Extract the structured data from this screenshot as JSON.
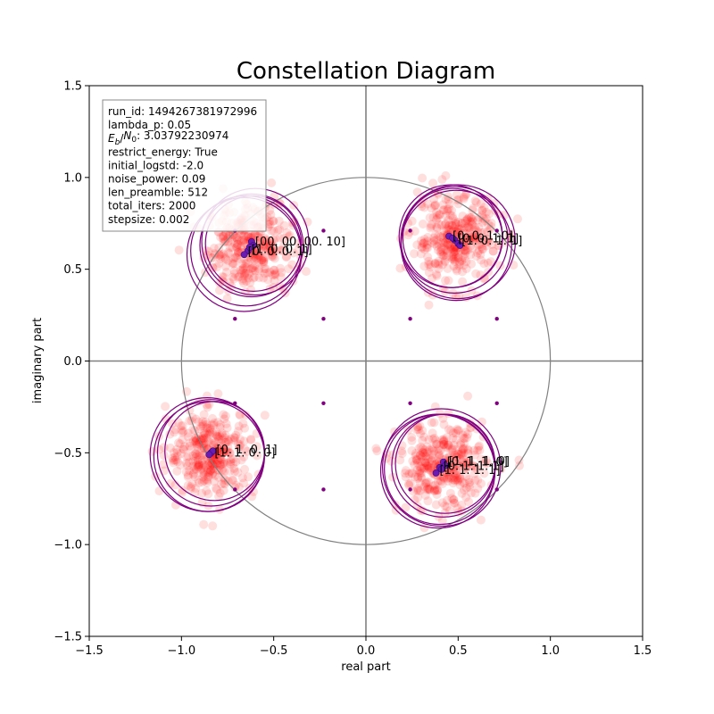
{
  "chart_data": {
    "type": "scatter",
    "title": "Constellation Diagram",
    "xlabel": "real part",
    "ylabel": "imaginary part",
    "xlim": [
      -1.5,
      1.5
    ],
    "ylim": [
      -1.5,
      1.5
    ],
    "x_ticks": [
      "−1.5",
      "−1.0",
      "−0.5",
      "0.0",
      "0.5",
      "1.0",
      "1.5"
    ],
    "y_ticks": [
      "−1.5",
      "−1.0",
      "−0.5",
      "0.0",
      "0.5",
      "1.0",
      "1.5"
    ],
    "grid": false,
    "unit_circle": {
      "radius": 1.0,
      "color": "#808080"
    },
    "origin_axes_color": "#808080",
    "info_box": [
      "run_id: 1494267381972996",
      "lambda_p: 0.05",
      "E_b/N_0: 3.03792230974",
      "restrict_energy: True",
      "initial_logstd: -2.0",
      "noise_power: 0.09",
      "len_preamble: 512",
      "total_iters: 2000",
      "stepsize: 0.002"
    ],
    "clusters": [
      {
        "center": [
          -0.63,
          0.62
        ],
        "spread": 0.19,
        "color": "#ff0000",
        "ring_color": "#800080",
        "rings": [
          [
            -0.62,
            0.63,
            0.28
          ],
          [
            -0.65,
            0.6,
            0.3
          ],
          [
            -0.61,
            0.64,
            0.26
          ],
          [
            -0.66,
            0.58,
            0.31
          ],
          [
            -0.6,
            0.65,
            0.29
          ]
        ],
        "points": [
          [
            -0.62,
            0.65
          ],
          [
            -0.64,
            0.6
          ],
          [
            -0.66,
            0.58
          ],
          [
            -0.61,
            0.63
          ],
          [
            -0.63,
            0.62
          ]
        ],
        "labels": [
          "[00. 00. 00. 10]",
          "[1. 0. 0. 1]",
          "[0. 0. 0. 1]"
        ]
      },
      {
        "center": [
          0.48,
          0.66
        ],
        "spread": 0.19,
        "color": "#ff0000",
        "ring_color": "#800080",
        "rings": [
          [
            0.48,
            0.66,
            0.29
          ],
          [
            0.5,
            0.65,
            0.31
          ],
          [
            0.47,
            0.67,
            0.27
          ],
          [
            0.49,
            0.63,
            0.3
          ],
          [
            0.46,
            0.68,
            0.28
          ]
        ],
        "points": [
          [
            0.45,
            0.68
          ],
          [
            0.48,
            0.66
          ],
          [
            0.5,
            0.64
          ],
          [
            0.47,
            0.67
          ],
          [
            0.51,
            0.63
          ]
        ],
        "labels": [
          "[0. 0. 1. 0]",
          "[0. 0. 1. 1]",
          "[1. 0. 1. 1]"
        ]
      },
      {
        "center": [
          -0.84,
          -0.5
        ],
        "spread": 0.19,
        "color": "#ff0000",
        "ring_color": "#800080",
        "rings": [
          [
            -0.84,
            -0.5,
            0.29
          ],
          [
            -0.86,
            -0.51,
            0.31
          ],
          [
            -0.82,
            -0.49,
            0.27
          ],
          [
            -0.85,
            -0.52,
            0.3
          ]
        ],
        "points": [
          [
            -0.84,
            -0.5
          ],
          [
            -0.83,
            -0.49
          ],
          [
            -0.85,
            -0.51
          ]
        ],
        "labels": [
          "[1. 1. 0. 0]",
          "[0. 1. 0. 1]"
        ]
      },
      {
        "center": [
          0.41,
          -0.58
        ],
        "spread": 0.19,
        "color": "#ff0000",
        "ring_color": "#800080",
        "rings": [
          [
            0.42,
            -0.57,
            0.28
          ],
          [
            0.4,
            -0.59,
            0.3
          ],
          [
            0.43,
            -0.56,
            0.27
          ],
          [
            0.39,
            -0.6,
            0.31
          ],
          [
            0.41,
            -0.58,
            0.32
          ]
        ],
        "points": [
          [
            0.42,
            -0.55
          ],
          [
            0.4,
            -0.58
          ],
          [
            0.38,
            -0.61
          ],
          [
            0.43,
            -0.57
          ],
          [
            0.41,
            -0.59
          ]
        ],
        "labels": [
          "[0. 1. 1. 0]",
          "[0. 1. 1. 1]",
          "[1. 1. 1. 1]",
          "[1. 1. 1. 0]"
        ]
      }
    ],
    "reference_points": {
      "color": "#800080",
      "points": [
        [
          -0.71,
          0.71
        ],
        [
          -0.23,
          0.71
        ],
        [
          0.24,
          0.71
        ],
        [
          0.71,
          0.71
        ],
        [
          -0.71,
          0.23
        ],
        [
          -0.23,
          0.23
        ],
        [
          0.24,
          0.23
        ],
        [
          0.71,
          0.23
        ],
        [
          -0.71,
          -0.23
        ],
        [
          -0.23,
          -0.23
        ],
        [
          0.24,
          -0.23
        ],
        [
          0.71,
          -0.23
        ],
        [
          -0.71,
          -0.7
        ],
        [
          -0.23,
          -0.7
        ],
        [
          0.24,
          -0.7
        ],
        [
          0.71,
          -0.7
        ]
      ]
    }
  }
}
